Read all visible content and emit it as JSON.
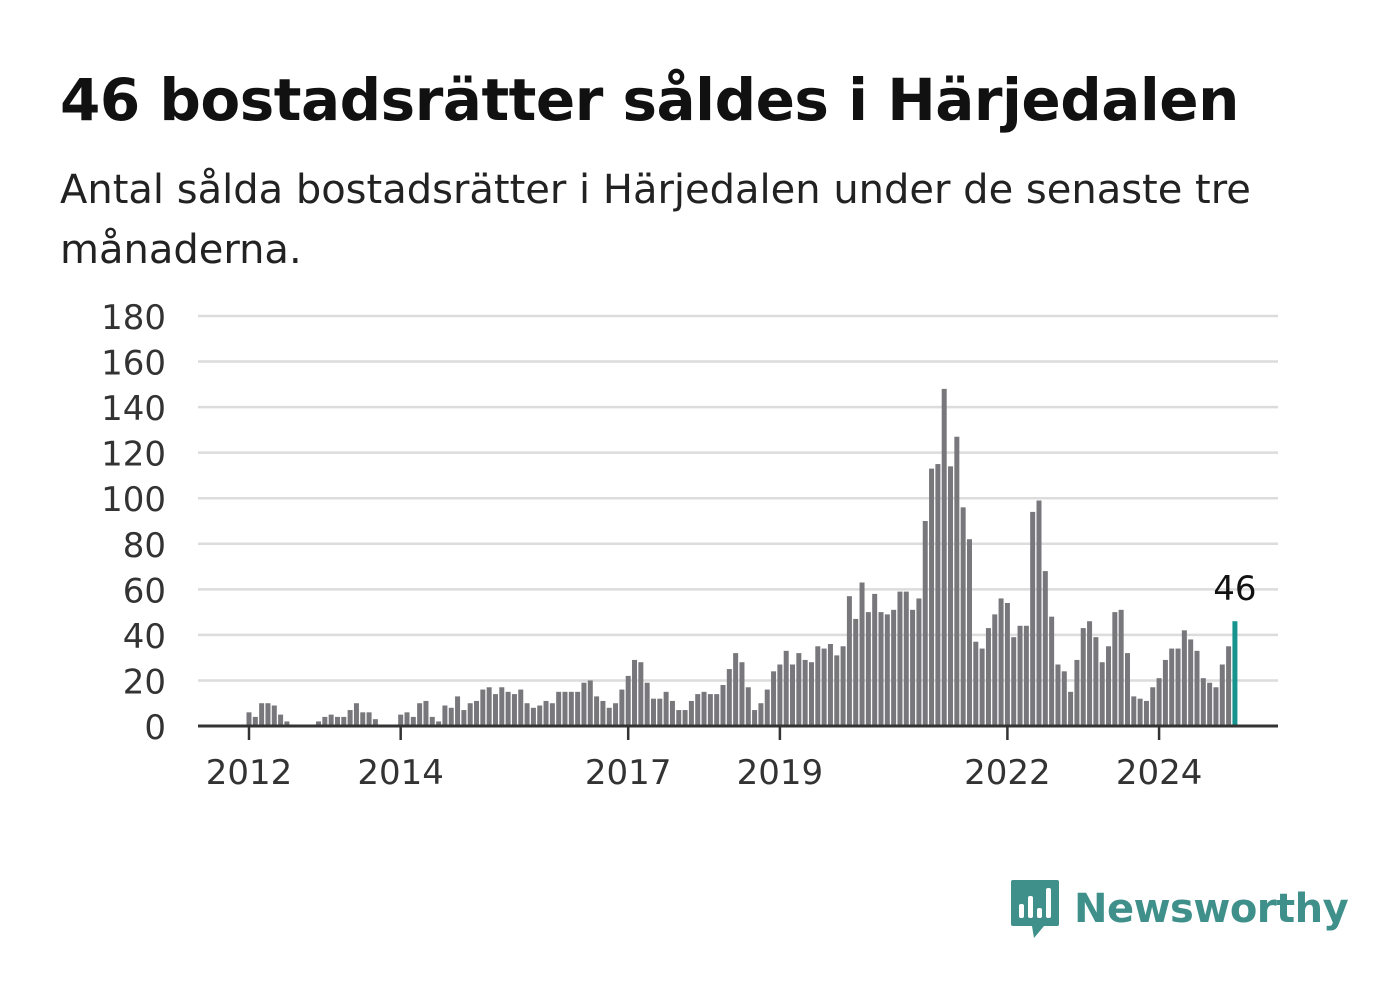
{
  "header": {
    "title": "46 bostadsrätter såldes i Härjedalen",
    "subtitle": "Antal sålda bostadsrätter i Härjedalen under de senaste tre månaderna."
  },
  "brand": {
    "name": "Newsworthy",
    "icon": "newsworthy-logo-icon",
    "color": "#3f8f8b"
  },
  "colors": {
    "bar": "#78777c",
    "highlight": "#18948f",
    "grid": "#dcdcdc",
    "axis": "#333333"
  },
  "chart_data": {
    "type": "bar",
    "x_start": "2011-11",
    "x_step": "month",
    "ylim": [
      0,
      180
    ],
    "yticks": [
      0,
      20,
      40,
      60,
      80,
      100,
      120,
      140,
      160,
      180
    ],
    "xticks": [
      {
        "label": "2012",
        "month_index": 2
      },
      {
        "label": "2014",
        "month_index": 26
      },
      {
        "label": "2017",
        "month_index": 62
      },
      {
        "label": "2019",
        "month_index": 86
      },
      {
        "label": "2022",
        "month_index": 122
      },
      {
        "label": "2024",
        "month_index": 146
      }
    ],
    "values": [
      0,
      0,
      6,
      4,
      10,
      10,
      9,
      5,
      2,
      0,
      0,
      0,
      0,
      2,
      4,
      5,
      4,
      4,
      7,
      10,
      6,
      6,
      3,
      0,
      0,
      0,
      5,
      6,
      4,
      10,
      11,
      4,
      2,
      9,
      8,
      13,
      7,
      10,
      11,
      16,
      17,
      14,
      17,
      15,
      14,
      16,
      10,
      8,
      9,
      11,
      10,
      15,
      15,
      15,
      15,
      19,
      20,
      13,
      11,
      8,
      10,
      16,
      22,
      29,
      28,
      19,
      12,
      12,
      15,
      11,
      7,
      7,
      11,
      14,
      15,
      14,
      14,
      18,
      25,
      32,
      28,
      17,
      7,
      10,
      16,
      24,
      27,
      33,
      27,
      32,
      29,
      28,
      35,
      34,
      36,
      31,
      35,
      57,
      47,
      63,
      50,
      58,
      50,
      49,
      51,
      59,
      59,
      51,
      56,
      90,
      113,
      115,
      148,
      114,
      127,
      96,
      82,
      37,
      34,
      43,
      49,
      56,
      54,
      39,
      44,
      44,
      94,
      99,
      68,
      48,
      27,
      24,
      15,
      29,
      43,
      46,
      39,
      28,
      35,
      50,
      51,
      32,
      13,
      12,
      11,
      17,
      21,
      29,
      34,
      34,
      42,
      38,
      33,
      21,
      19,
      17,
      27,
      35,
      46
    ],
    "highlight_label": "46"
  }
}
